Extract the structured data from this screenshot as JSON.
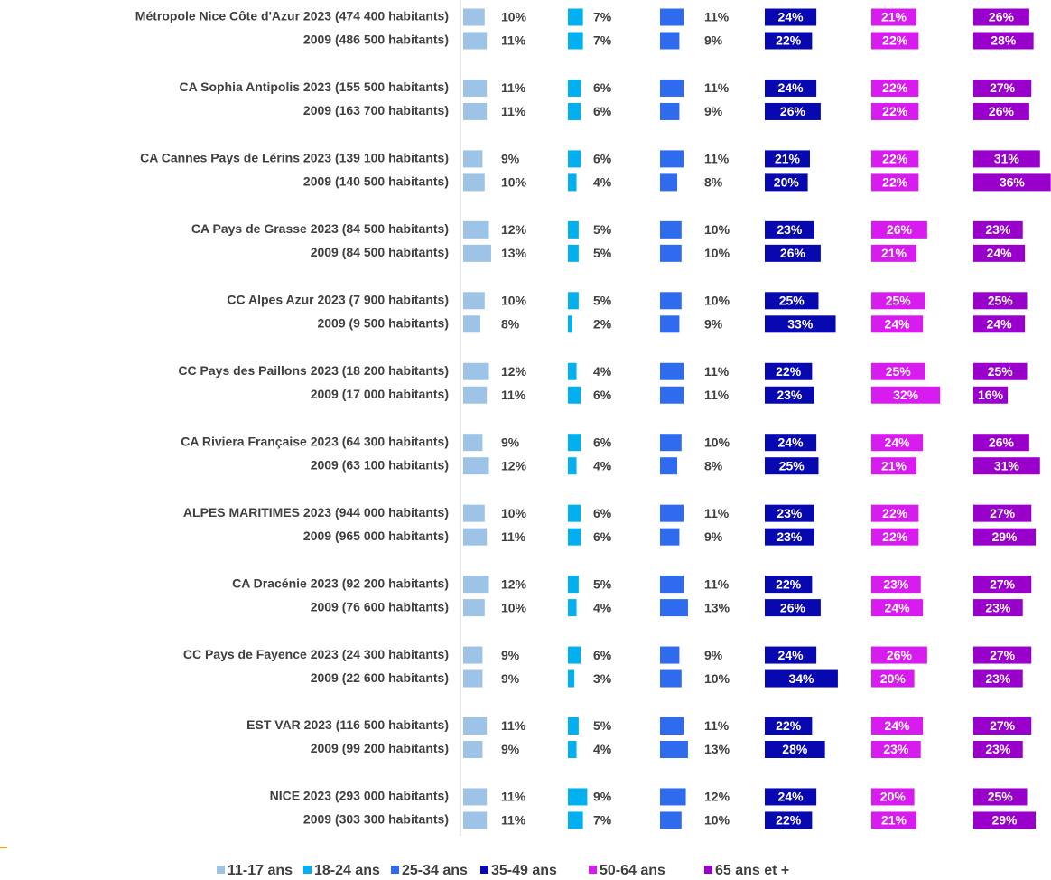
{
  "chart_data": {
    "type": "bar-panels",
    "categories": [
      "Métropole Nice Côte d'Azur 2023 (474 400 habitants)",
      "2009 (486 500 habitants)",
      "CA Sophia Antipolis 2023 (155 500 habitants)",
      "2009 (163 700 habitants)",
      "CA Cannes Pays de Lérins 2023 (139 100 habitants)",
      "2009 (140 500 habitants)",
      "CA Pays de Grasse 2023 (84 500 habitants)",
      "2009 (84 500 habitants)",
      "CC Alpes Azur 2023 (7 900 habitants)",
      "2009 (9 500 habitants)",
      "CC Pays des Paillons 2023 (18 200 habitants)",
      "2009 (17 000 habitants)",
      "CA Riviera Française 2023 (64 300 habitants)",
      "2009 (63 100 habitants)",
      "ALPES MARITIMES 2023 (944 000 habitants)",
      "2009 (965 000 habitants)",
      "CA Dracénie 2023 (92 200 habitants)",
      "2009 (76 600 habitants)",
      "CC Pays de Fayence 2023 (24 300 habitants)",
      "2009 (22 600 habitants)",
      "EST VAR 2023 (116 500 habitants)",
      "2009 (99 200 habitants)",
      "NICE 2023 (293 000 habitants)",
      "2009 (303 300 habitants)"
    ],
    "series": [
      {
        "name": "11-17 ans",
        "color": "#9dc3e6",
        "values": [
          10,
          11,
          11,
          11,
          9,
          10,
          12,
          13,
          10,
          8,
          12,
          11,
          9,
          12,
          10,
          11,
          12,
          10,
          9,
          9,
          11,
          9,
          11,
          11
        ],
        "value_labels": [
          "10%",
          "11%",
          "11%",
          "11%",
          "9%",
          "10%",
          "12%",
          "13%",
          "10%",
          "8%",
          "12%",
          "11%",
          "9%",
          "12%",
          "10%",
          "11%",
          "12%",
          "10%",
          "9%",
          "9%",
          "11%",
          "9%",
          "11%",
          "11%"
        ]
      },
      {
        "name": "18-24 ans",
        "color": "#00b0f0",
        "values": [
          7,
          7,
          6,
          6,
          6,
          4,
          5,
          5,
          5,
          2,
          4,
          6,
          6,
          4,
          6,
          6,
          5,
          4,
          6,
          3,
          5,
          4,
          9,
          7
        ],
        "value_labels": [
          "7%",
          "7%",
          "6%",
          "6%",
          "6%",
          "4%",
          "5%",
          "5%",
          "5%",
          "2%",
          "4%",
          "6%",
          "6%",
          "4%",
          "6%",
          "6%",
          "5%",
          "4%",
          "6%",
          "3%",
          "5%",
          "4%",
          "9%",
          "7%"
        ]
      },
      {
        "name": "25-34 ans",
        "color": "#2f6bef",
        "values": [
          11,
          9,
          11,
          9,
          11,
          8,
          10,
          10,
          10,
          9,
          11,
          11,
          10,
          8,
          11,
          9,
          11,
          13,
          9,
          10,
          11,
          13,
          12,
          10
        ],
        "value_labels": [
          "11%",
          "9%",
          "11%",
          "9%",
          "11%",
          "8%",
          "10%",
          "10%",
          "10%",
          "9%",
          "11%",
          "11%",
          "10%",
          "8%",
          "11%",
          "9%",
          "11%",
          "13%",
          "9%",
          "10%",
          "11%",
          "13%",
          "12%",
          "10%"
        ]
      },
      {
        "name": "35-49 ans",
        "color": "#0808b0",
        "values": [
          24,
          22,
          24,
          26,
          21,
          20,
          23,
          26,
          25,
          33,
          22,
          23,
          24,
          25,
          23,
          23,
          22,
          26,
          24,
          34,
          22,
          28,
          24,
          22
        ],
        "value_labels": [
          "24%",
          "22%",
          "24%",
          "26%",
          "21%",
          "20%",
          "23%",
          "26%",
          "25%",
          "33%",
          "22%",
          "23%",
          "24%",
          "25%",
          "23%",
          "23%",
          "22%",
          "26%",
          "24%",
          "34%",
          "22%",
          "28%",
          "24%",
          "22%"
        ]
      },
      {
        "name": "50-64 ans",
        "color": "#d81cf0",
        "values": [
          21,
          22,
          22,
          22,
          22,
          22,
          26,
          21,
          25,
          24,
          25,
          32,
          24,
          21,
          22,
          22,
          23,
          24,
          26,
          20,
          24,
          23,
          20,
          21
        ],
        "value_labels": [
          "21%",
          "22%",
          "22%",
          "22%",
          "22%",
          "22%",
          "26%",
          "21%",
          "25%",
          "24%",
          "25%",
          "32%",
          "24%",
          "21%",
          "22%",
          "22%",
          "23%",
          "24%",
          "26%",
          "20%",
          "24%",
          "23%",
          "20%",
          "21%"
        ]
      },
      {
        "name": "65 ans et +",
        "color": "#9a00cc",
        "values": [
          26,
          28,
          27,
          26,
          31,
          36,
          23,
          24,
          25,
          24,
          25,
          16,
          26,
          31,
          27,
          29,
          27,
          23,
          27,
          23,
          27,
          23,
          25,
          29
        ],
        "value_labels": [
          "26%",
          "28%",
          "27%",
          "26%",
          "31%",
          "36%",
          "23%",
          "24%",
          "25%",
          "24%",
          "25%",
          "16%",
          "26%",
          "31%",
          "27%",
          "29%",
          "27%",
          "23%",
          "27%",
          "23%",
          "27%",
          "23%",
          "25%",
          "29%"
        ]
      }
    ]
  }
}
